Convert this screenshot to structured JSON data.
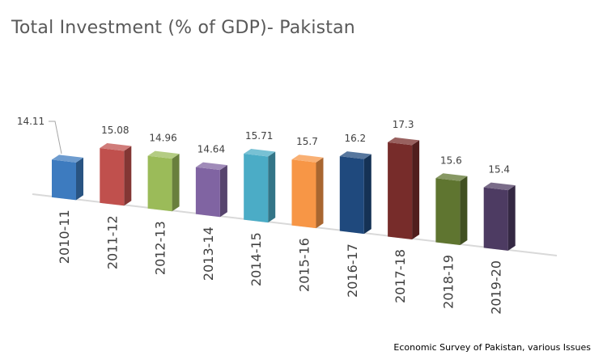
{
  "chart_data": {
    "type": "bar",
    "title": "Total Investment (% of GDP)- Pakistan",
    "categories": [
      "2010-11",
      "2011-12",
      "2012-13",
      "2013-14",
      "2014-15",
      "2015-16",
      "2016-17",
      "2017-18",
      "2018-19",
      "2019-20"
    ],
    "values": [
      14.11,
      15.08,
      14.96,
      14.64,
      15.71,
      15.7,
      16.2,
      17.3,
      15.6,
      15.4
    ],
    "value_labels": [
      "14.11",
      "15.08",
      "14.96",
      "14.64",
      "15.71",
      "15.7",
      "16.2",
      "17.3",
      "15.6",
      "15.4"
    ],
    "colors": [
      "#3d7bbf",
      "#c0504d",
      "#9bbb59",
      "#8064a2",
      "#4bacc6",
      "#f79646",
      "#1f497d",
      "#772c2a",
      "#5f7530",
      "#4d3b62"
    ],
    "ylim": [
      12,
      18
    ],
    "grid": false,
    "legend": "none",
    "source": "Economic Survey of Pakistan, various Issues"
  }
}
